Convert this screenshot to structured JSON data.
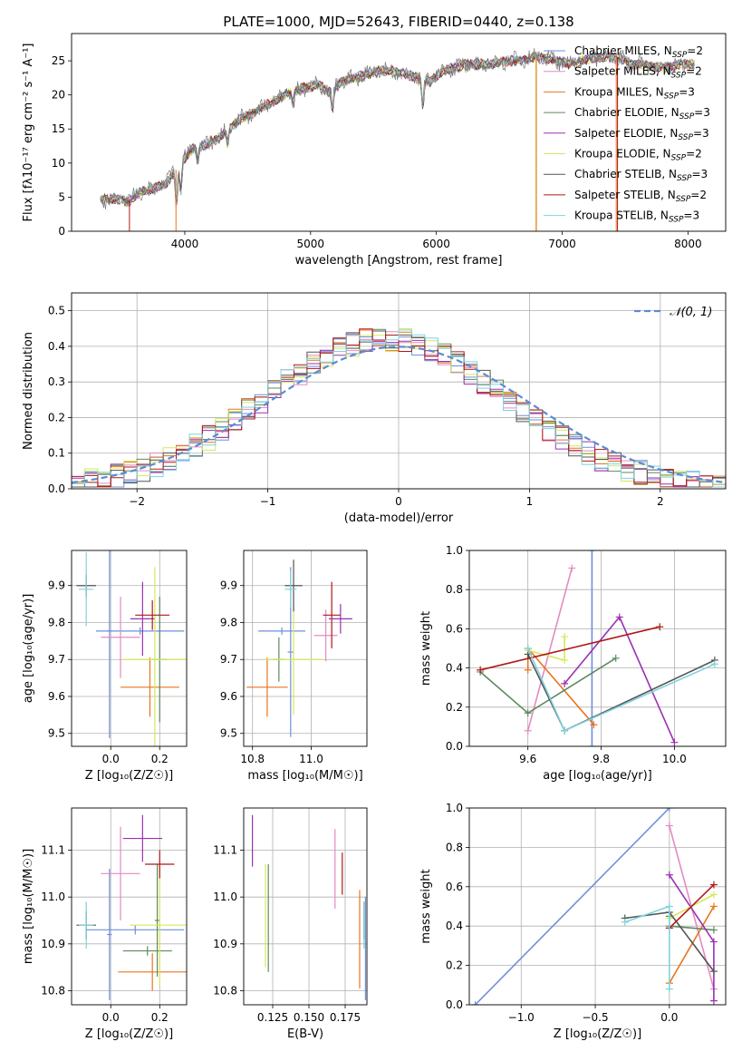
{
  "figure_title": "PLATE=1000, MJD=52643, FIBERID=0440, z=0.138",
  "colors": {
    "Chabrier MILES": "#6f8fdc",
    "Salpeter MILES": "#e58ac0",
    "Kroupa MILES": "#e8741e",
    "Chabrier ELODIE": "#5e8a5e",
    "Salpeter ELODIE": "#9b30b0",
    "Kroupa ELODIE": "#d6e85a",
    "Chabrier STELIB": "#555555",
    "Salpeter STELIB": "#b01818",
    "Kroupa STELIB": "#7fd3dd"
  },
  "chart_data": [
    {
      "id": "spectrum",
      "type": "line",
      "title": "PLATE=1000, MJD=52643, FIBERID=0440, z=0.138",
      "xlabel": "wavelength [Angstrom, rest frame]",
      "ylabel": "Flux [fλ10⁻¹⁷ erg cm⁻² s⁻¹ A⁻¹]",
      "xlim": [
        3100,
        8300
      ],
      "ylim": [
        0,
        29
      ],
      "xticks": [
        4000,
        5000,
        6000,
        7000,
        8000
      ],
      "yticks": [
        0,
        5,
        10,
        15,
        20,
        25
      ],
      "grid": false,
      "legend_position": "right",
      "legend": [
        {
          "name": "Chabrier MILES",
          "nssp": "2"
        },
        {
          "name": "Salpeter MILES",
          "nssp": "2"
        },
        {
          "name": "Kroupa MILES",
          "nssp": "3"
        },
        {
          "name": "Chabrier ELODIE",
          "nssp": "3"
        },
        {
          "name": "Salpeter ELODIE",
          "nssp": "3"
        },
        {
          "name": "Kroupa ELODIE",
          "nssp": "2"
        },
        {
          "name": "Chabrier STELIB",
          "nssp": "3"
        },
        {
          "name": "Salpeter STELIB",
          "nssp": "2"
        },
        {
          "name": "Kroupa STELIB",
          "nssp": "3"
        }
      ],
      "continuum": [
        [
          3330,
          4.6
        ],
        [
          3450,
          4.8
        ],
        [
          3550,
          4.3
        ],
        [
          3650,
          5.8
        ],
        [
          3750,
          6.2
        ],
        [
          3850,
          7.0
        ],
        [
          3950,
          9.5
        ],
        [
          4050,
          12.0
        ],
        [
          4150,
          12.5
        ],
        [
          4250,
          13.5
        ],
        [
          4350,
          15.0
        ],
        [
          4450,
          16.5
        ],
        [
          4550,
          17.5
        ],
        [
          4650,
          18.5
        ],
        [
          4750,
          19.5
        ],
        [
          4850,
          20.5
        ],
        [
          4950,
          21.0
        ],
        [
          5050,
          21.5
        ],
        [
          5150,
          20.5
        ],
        [
          5250,
          22.0
        ],
        [
          5350,
          22.5
        ],
        [
          5450,
          23.0
        ],
        [
          5550,
          23.5
        ],
        [
          5650,
          23.5
        ],
        [
          5750,
          23.0
        ],
        [
          5850,
          22.5
        ],
        [
          5950,
          22.0
        ],
        [
          6050,
          23.5
        ],
        [
          6150,
          24.0
        ],
        [
          6250,
          24.5
        ],
        [
          6350,
          24.5
        ],
        [
          6450,
          24.5
        ],
        [
          6550,
          25.0
        ],
        [
          6650,
          25.0
        ],
        [
          6750,
          25.5
        ],
        [
          6850,
          25.5
        ],
        [
          6950,
          25.0
        ],
        [
          7050,
          24.5
        ],
        [
          7150,
          25.0
        ],
        [
          7250,
          25.5
        ],
        [
          7350,
          25.5
        ],
        [
          7450,
          25.5
        ],
        [
          7550,
          24.5
        ],
        [
          7650,
          24.5
        ],
        [
          7750,
          24.0
        ],
        [
          7850,
          24.0
        ],
        [
          7950,
          24.5
        ],
        [
          8050,
          24.5
        ]
      ]
    },
    {
      "id": "residual_hist",
      "type": "histogram",
      "xlabel": "(data-model)/error",
      "ylabel": "Normed distribution",
      "xlim": [
        -2.5,
        2.5
      ],
      "ylim": [
        0,
        0.55
      ],
      "xticks": [
        -2,
        -1,
        0,
        1,
        2
      ],
      "yticks": [
        0.0,
        0.1,
        0.2,
        0.3,
        0.4,
        0.5
      ],
      "grid": true,
      "legend_position": "top-right",
      "legend": [
        "𝒩(0, 1)"
      ],
      "model_curve": "normal(0,1)"
    },
    {
      "id": "age_vs_Z",
      "type": "scatter",
      "xlabel": "Z [log₁₀(Z/Z☉)]",
      "ylabel": "age  [log₁₀(age/yr)]",
      "xlim": [
        -0.16,
        0.31
      ],
      "ylim": [
        9.465,
        9.995
      ],
      "xticks": [
        0.0,
        0.2
      ],
      "yticks": [
        9.5,
        9.6,
        9.7,
        9.8,
        9.9
      ],
      "grid": true,
      "points": [
        {
          "series": "Chabrier STELIB",
          "x": -0.1,
          "y": 9.9,
          "xerr": 0.04,
          "yerr": 0.03
        },
        {
          "series": "Kroupa STELIB",
          "x": -0.1,
          "y": 9.89,
          "xerr": 0.03,
          "yerr": 0.1
        },
        {
          "series": "Chabrier MILES",
          "x": -0.005,
          "y": 9.777,
          "xerr": 0.01,
          "yerr": 0.29
        },
        {
          "series": "Chabrier MILES",
          "x": 0.12,
          "y": 9.777,
          "xerr": 0.18,
          "yerr": 0.01
        },
        {
          "series": "Salpeter MILES",
          "x": 0.04,
          "y": 9.76,
          "xerr": 0.08,
          "yerr": 0.11
        },
        {
          "series": "Kroupa MILES",
          "x": 0.16,
          "y": 9.625,
          "xerr": 0.12,
          "yerr": 0.08
        },
        {
          "series": "Chabrier ELODIE",
          "x": 0.2,
          "y": 9.7,
          "xerr": 0.03,
          "yerr": 0.17
        },
        {
          "series": "Salpeter ELODIE",
          "x": 0.13,
          "y": 9.81,
          "xerr": 0.05,
          "yerr": 0.1
        },
        {
          "series": "Kroupa ELODIE",
          "x": 0.18,
          "y": 9.7,
          "xerr": 0.13,
          "yerr": 0.25
        },
        {
          "series": "Salpeter STELIB",
          "x": 0.17,
          "y": 9.82,
          "xerr": 0.07,
          "yerr": 0.04
        }
      ]
    },
    {
      "id": "age_vs_mass",
      "type": "scatter",
      "xlabel": "mass [log₁₀(M/M☉)]",
      "ylabel": "",
      "xlim": [
        10.77,
        11.19
      ],
      "ylim": [
        9.465,
        9.995
      ],
      "xticks": [
        10.8,
        11.0
      ],
      "yticks": [
        9.5,
        9.6,
        9.7,
        9.8,
        9.9
      ],
      "grid": true,
      "points": [
        {
          "series": "Chabrier MILES",
          "x": 10.9,
          "y": 9.777,
          "xerr": 0.08,
          "yerr": 0.01
        },
        {
          "series": "Chabrier MILES",
          "x": 10.93,
          "y": 9.72,
          "xerr": 0.01,
          "yerr": 0.23
        },
        {
          "series": "Kroupa MILES",
          "x": 10.85,
          "y": 9.625,
          "xerr": 0.07,
          "yerr": 0.08
        },
        {
          "series": "Chabrier ELODIE",
          "x": 10.89,
          "y": 9.7,
          "xerr": 0.02,
          "yerr": 0.06
        },
        {
          "series": "Kroupa ELODIE",
          "x": 10.94,
          "y": 9.7,
          "xerr": 0.1,
          "yerr": 0.15
        },
        {
          "series": "Chabrier STELIB",
          "x": 10.94,
          "y": 9.9,
          "xerr": 0.03,
          "yerr": 0.07
        },
        {
          "series": "Kroupa STELIB",
          "x": 10.93,
          "y": 9.89,
          "xerr": 0.02,
          "yerr": 0.05
        },
        {
          "series": "Salpeter MILES",
          "x": 11.05,
          "y": 9.765,
          "xerr": 0.04,
          "yerr": 0.07
        },
        {
          "series": "Salpeter STELIB",
          "x": 11.07,
          "y": 9.82,
          "xerr": 0.03,
          "yerr": 0.09
        },
        {
          "series": "Salpeter ELODIE",
          "x": 11.1,
          "y": 9.81,
          "xerr": 0.04,
          "yerr": 0.04
        }
      ]
    },
    {
      "id": "weight_vs_age",
      "type": "line",
      "xlabel": "age  [log₁₀(age/yr)]",
      "ylabel": "mass weight",
      "xlim": [
        9.44,
        10.14
      ],
      "ylim": [
        0,
        1
      ],
      "xticks": [
        9.6,
        9.8,
        10.0
      ],
      "yticks": [
        0.0,
        0.2,
        0.4,
        0.6,
        0.8,
        1.0
      ],
      "grid": true,
      "series": [
        {
          "series": "Chabrier MILES",
          "x": [
            9.775,
            9.775
          ],
          "y": [
            0.0,
            1.0
          ]
        },
        {
          "series": "Salpeter MILES",
          "x": [
            9.6,
            9.72
          ],
          "y": [
            0.08,
            0.91
          ]
        },
        {
          "series": "Kroupa MILES",
          "x": [
            9.6,
            9.6,
            9.78
          ],
          "y": [
            0.39,
            0.5,
            0.11
          ]
        },
        {
          "series": "Chabrier ELODIE",
          "x": [
            9.47,
            9.6,
            9.84
          ],
          "y": [
            0.38,
            0.17,
            0.45
          ]
        },
        {
          "series": "Salpeter ELODIE",
          "x": [
            9.7,
            9.85,
            10.0
          ],
          "y": [
            0.32,
            0.66,
            0.02
          ]
        },
        {
          "series": "Kroupa ELODIE",
          "x": [
            9.6,
            9.7,
            9.7
          ],
          "y": [
            0.49,
            0.44,
            0.56
          ]
        },
        {
          "series": "Chabrier STELIB",
          "x": [
            9.6,
            9.7,
            10.11
          ],
          "y": [
            0.47,
            0.08,
            0.44
          ]
        },
        {
          "series": "Salpeter STELIB",
          "x": [
            9.47,
            9.96
          ],
          "y": [
            0.39,
            0.61
          ]
        },
        {
          "series": "Kroupa STELIB",
          "x": [
            9.6,
            9.7,
            10.11
          ],
          "y": [
            0.5,
            0.08,
            0.42
          ]
        }
      ]
    },
    {
      "id": "mass_vs_Z",
      "type": "scatter",
      "xlabel": "Z [log₁₀(Z/Z☉)]",
      "ylabel": "mass [log₁₀(M/M☉)]",
      "xlim": [
        -0.16,
        0.31
      ],
      "ylim": [
        10.77,
        11.19
      ],
      "xticks": [
        0.0,
        0.2
      ],
      "yticks": [
        10.8,
        10.9,
        11.0,
        11.1
      ],
      "grid": true,
      "points": [
        {
          "series": "Chabrier STELIB",
          "x": -0.1,
          "y": 10.94,
          "xerr": 0.04,
          "yerr": 0.03
        },
        {
          "series": "Kroupa STELIB",
          "x": -0.1,
          "y": 10.94,
          "xerr": 0.03,
          "yerr": 0.05
        },
        {
          "series": "Chabrier MILES",
          "x": -0.005,
          "y": 10.92,
          "xerr": 0.01,
          "yerr": 0.14
        },
        {
          "series": "Chabrier MILES",
          "x": 0.1,
          "y": 10.93,
          "xerr": 0.2,
          "yerr": 0.01
        },
        {
          "series": "Salpeter MILES",
          "x": 0.04,
          "y": 11.05,
          "xerr": 0.08,
          "yerr": 0.1
        },
        {
          "series": "Kroupa MILES",
          "x": 0.17,
          "y": 10.84,
          "xerr": 0.14,
          "yerr": 0.04
        },
        {
          "series": "Chabrier ELODIE",
          "x": 0.15,
          "y": 10.885,
          "xerr": 0.1,
          "yerr": 0.01
        },
        {
          "series": "Chabrier ELODIE",
          "x": 0.19,
          "y": 10.95,
          "xerr": 0.01,
          "yerr": 0.12
        },
        {
          "series": "Salpeter ELODIE",
          "x": 0.13,
          "y": 11.125,
          "xerr": 0.08,
          "yerr": 0.05
        },
        {
          "series": "Kroupa ELODIE",
          "x": 0.2,
          "y": 10.94,
          "xerr": 0.12,
          "yerr": 0.13
        },
        {
          "series": "Salpeter STELIB",
          "x": 0.2,
          "y": 11.07,
          "xerr": 0.06,
          "yerr": 0.03
        }
      ]
    },
    {
      "id": "mass_vs_ebv",
      "type": "scatter",
      "xlabel": "E(B-V)",
      "ylabel": "",
      "xlim": [
        0.105,
        0.19
      ],
      "ylim": [
        10.77,
        11.19
      ],
      "xticks": [
        0.125,
        0.15,
        0.175
      ],
      "xtick_labels": [
        "0.125",
        "0.150",
        "0.175"
      ],
      "yticks": [
        10.8,
        10.9,
        11.0,
        11.1
      ],
      "grid": true,
      "points": [
        {
          "series": "Salpeter ELODIE",
          "x": 0.111,
          "y": 11.12,
          "xerr": 0,
          "yerr": 0.055
        },
        {
          "series": "Kroupa ELODIE",
          "x": 0.12,
          "y": 10.96,
          "xerr": 0,
          "yerr": 0.11
        },
        {
          "series": "Chabrier ELODIE",
          "x": 0.122,
          "y": 10.955,
          "xerr": 0,
          "yerr": 0.115
        },
        {
          "series": "Salpeter MILES",
          "x": 0.168,
          "y": 11.06,
          "xerr": 0,
          "yerr": 0.085
        },
        {
          "series": "Salpeter STELIB",
          "x": 0.173,
          "y": 11.05,
          "xerr": 0,
          "yerr": 0.045
        },
        {
          "series": "Kroupa MILES",
          "x": 0.185,
          "y": 10.91,
          "xerr": 0,
          "yerr": 0.105
        },
        {
          "series": "Chabrier STELIB",
          "x": 0.188,
          "y": 10.95,
          "xerr": 0,
          "yerr": 0.04
        },
        {
          "series": "Kroupa STELIB",
          "x": 0.188,
          "y": 10.94,
          "xerr": 0,
          "yerr": 0.05
        },
        {
          "series": "Chabrier MILES",
          "x": 0.189,
          "y": 10.89,
          "xerr": 0,
          "yerr": 0.11
        }
      ]
    },
    {
      "id": "weight_vs_Z",
      "type": "line",
      "xlabel": "Z [log₁₀(Z/Z☉)]",
      "ylabel": "mass weight",
      "xlim": [
        -1.35,
        0.38
      ],
      "ylim": [
        0,
        1
      ],
      "xticks": [
        -1.0,
        -0.5,
        0.0
      ],
      "yticks": [
        0.0,
        0.2,
        0.4,
        0.6,
        0.8,
        1.0
      ],
      "grid": true,
      "series": [
        {
          "series": "Chabrier MILES",
          "x": [
            -1.31,
            0.0
          ],
          "y": [
            0.0,
            1.0
          ]
        },
        {
          "series": "Salpeter MILES",
          "x": [
            0.0,
            0.3
          ],
          "y": [
            0.91,
            0.08
          ]
        },
        {
          "series": "Kroupa MILES",
          "x": [
            0.0,
            0.3
          ],
          "y": [
            0.11,
            0.5
          ]
        },
        {
          "series": "Chabrier ELODIE",
          "x": [
            0.0,
            0.0,
            0.3
          ],
          "y": [
            0.45,
            0.4,
            0.38
          ]
        },
        {
          "series": "Salpeter ELODIE",
          "x": [
            0.0,
            0.3,
            0.3
          ],
          "y": [
            0.66,
            0.32,
            0.02
          ]
        },
        {
          "series": "Kroupa ELODIE",
          "x": [
            0.0,
            0.3
          ],
          "y": [
            0.44,
            0.56
          ]
        },
        {
          "series": "Chabrier STELIB",
          "x": [
            -0.3,
            0.0,
            0.3
          ],
          "y": [
            0.44,
            0.47,
            0.17
          ]
        },
        {
          "series": "Salpeter STELIB",
          "x": [
            0.0,
            0.3
          ],
          "y": [
            0.39,
            0.61
          ]
        },
        {
          "series": "Kroupa STELIB",
          "x": [
            -0.3,
            0.0,
            0.0
          ],
          "y": [
            0.42,
            0.5,
            0.08
          ]
        }
      ]
    }
  ]
}
